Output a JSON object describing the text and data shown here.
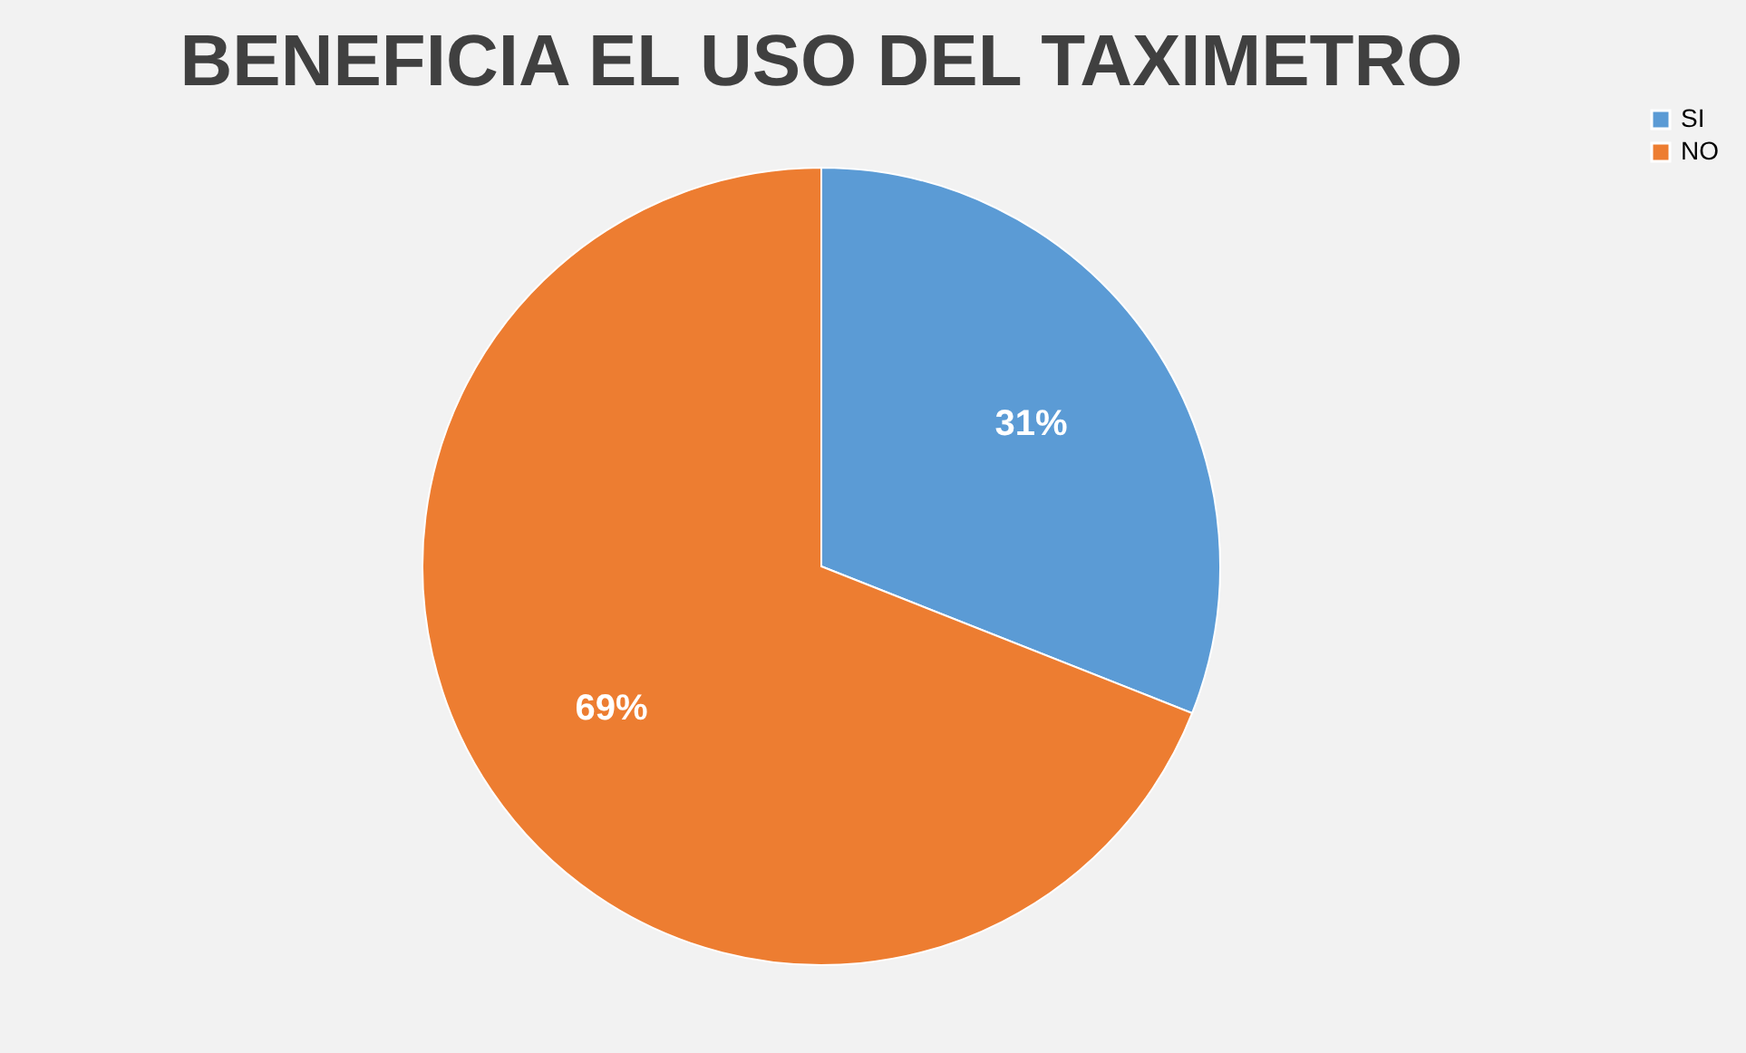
{
  "chart_data": {
    "type": "pie",
    "title": "BENEFICIA EL USO DEL TAXIMETRO",
    "categories": [
      "SI",
      "NO"
    ],
    "values": [
      31,
      69
    ],
    "colors": [
      "#5b9bd5",
      "#ed7d31"
    ],
    "value_labels": [
      "31%",
      "69%"
    ],
    "legend": "right"
  }
}
